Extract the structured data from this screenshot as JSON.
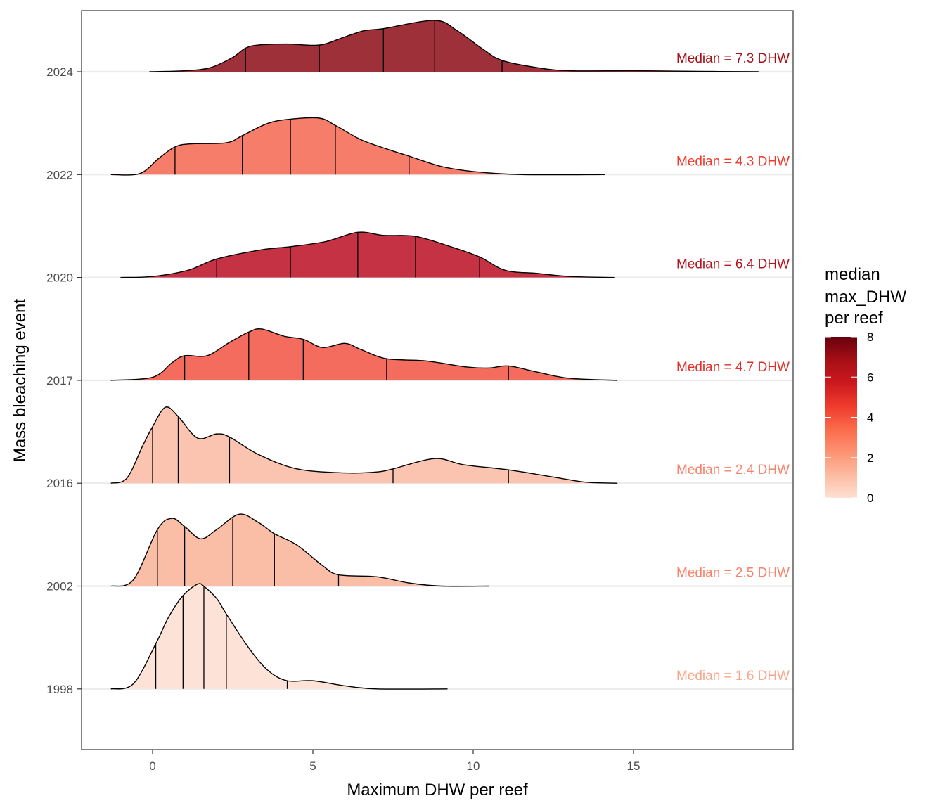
{
  "chart_data": {
    "type": "ridgeline",
    "title": "",
    "xlabel": "Maximum DHW per reef",
    "ylabel": "Mass bleaching event",
    "xlim": [
      -2.2,
      20
    ],
    "x_ticks": [
      0,
      5,
      10,
      15
    ],
    "x_tick_labels": [
      "0",
      "5",
      "10",
      "15"
    ],
    "grid": "horizontal baselines only",
    "legend": {
      "title_lines": [
        "median",
        "max_DHW",
        "per reef"
      ],
      "type": "colorbar",
      "placement": "right",
      "range": [
        0,
        8
      ],
      "ticks": [
        0,
        2,
        4,
        6,
        8
      ],
      "tick_labels": [
        "0",
        "2",
        "4",
        "6",
        "8"
      ],
      "colors": [
        "#fee0d2",
        "#fcbba1",
        "#fc9272",
        "#fb6a4a",
        "#ef3b2c",
        "#cb181d",
        "#a50f15",
        "#67000d"
      ]
    },
    "series": [
      {
        "name": "2024",
        "median": 7.3,
        "median_label": "Median = 7.3 DHW",
        "fill": "#9e3039",
        "label_color": "#a50f15",
        "quantile_lines": [
          2.9,
          5.2,
          7.2,
          8.8,
          10.9
        ],
        "density": [
          [
            -0.1,
            0
          ],
          [
            1,
            0.01
          ],
          [
            1.8,
            0.04
          ],
          [
            2.5,
            0.14
          ],
          [
            2.9,
            0.23
          ],
          [
            3.3,
            0.26
          ],
          [
            4.2,
            0.27
          ],
          [
            5.2,
            0.26
          ],
          [
            6,
            0.34
          ],
          [
            6.6,
            0.4
          ],
          [
            7.2,
            0.42
          ],
          [
            8.8,
            0.5
          ],
          [
            9.5,
            0.4
          ],
          [
            10.3,
            0.22
          ],
          [
            10.9,
            0.11
          ],
          [
            12,
            0.04
          ],
          [
            13,
            0.01
          ],
          [
            15,
            0.01
          ],
          [
            17,
            0.004
          ],
          [
            18.9,
            0
          ]
        ]
      },
      {
        "name": "2022",
        "median": 4.3,
        "median_label": "Median = 4.3 DHW",
        "fill": "#f67d69",
        "label_color": "#ef3b2c",
        "quantile_lines": [
          0.7,
          2.8,
          4.3,
          5.7,
          8.0
        ],
        "density": [
          [
            -1.3,
            0
          ],
          [
            -0.4,
            0.01
          ],
          [
            0.2,
            0.16
          ],
          [
            0.7,
            0.27
          ],
          [
            1.2,
            0.3
          ],
          [
            2.3,
            0.31
          ],
          [
            2.8,
            0.38
          ],
          [
            3.6,
            0.5
          ],
          [
            4.3,
            0.54
          ],
          [
            5.2,
            0.55
          ],
          [
            5.7,
            0.48
          ],
          [
            6.5,
            0.34
          ],
          [
            7.3,
            0.25
          ],
          [
            8,
            0.18
          ],
          [
            9,
            0.08
          ],
          [
            10,
            0.03
          ],
          [
            11.5,
            0.0
          ],
          [
            14.1,
            0
          ]
        ]
      },
      {
        "name": "2020",
        "median": 6.4,
        "median_label": "Median = 6.4 DHW",
        "fill": "#c53244",
        "label_color": "#b5141e",
        "quantile_lines": [
          2.0,
          4.3,
          6.4,
          8.2,
          10.2
        ],
        "density": [
          [
            -1.0,
            0
          ],
          [
            0,
            0.01
          ],
          [
            1.1,
            0.07
          ],
          [
            2.0,
            0.18
          ],
          [
            3.4,
            0.27
          ],
          [
            4.3,
            0.3
          ],
          [
            5.4,
            0.35
          ],
          [
            6.4,
            0.44
          ],
          [
            7.2,
            0.41
          ],
          [
            8.2,
            0.4
          ],
          [
            9.3,
            0.3
          ],
          [
            10.2,
            0.2
          ],
          [
            11,
            0.07
          ],
          [
            12,
            0.04
          ],
          [
            13,
            0.01
          ],
          [
            14.4,
            0
          ]
        ]
      },
      {
        "name": "2017",
        "median": 4.7,
        "median_label": "Median = 4.7 DHW",
        "fill": "#f36c5e",
        "label_color": "#e32f27",
        "quantile_lines": [
          1.0,
          3.0,
          4.7,
          7.3,
          11.1
        ],
        "density": [
          [
            -1.3,
            0
          ],
          [
            0,
            0.03
          ],
          [
            0.6,
            0.17
          ],
          [
            1.0,
            0.24
          ],
          [
            1.7,
            0.24
          ],
          [
            2.4,
            0.37
          ],
          [
            3.0,
            0.47
          ],
          [
            3.4,
            0.5
          ],
          [
            4.1,
            0.43
          ],
          [
            4.7,
            0.4
          ],
          [
            5.3,
            0.32
          ],
          [
            6.0,
            0.36
          ],
          [
            6.5,
            0.3
          ],
          [
            7.3,
            0.21
          ],
          [
            8.5,
            0.19
          ],
          [
            9.8,
            0.13
          ],
          [
            10.5,
            0.12
          ],
          [
            11.1,
            0.14
          ],
          [
            12,
            0.08
          ],
          [
            13,
            0.02
          ],
          [
            14.5,
            0
          ]
        ]
      },
      {
        "name": "2016",
        "median": 2.4,
        "median_label": "Median = 2.4 DHW",
        "fill": "#fbc4b0",
        "label_color": "#f8826a",
        "quantile_lines": [
          0.0,
          0.8,
          2.4,
          7.5,
          11.1
        ],
        "density": [
          [
            -1.3,
            0
          ],
          [
            -0.8,
            0.05
          ],
          [
            -0.3,
            0.37
          ],
          [
            0.0,
            0.55
          ],
          [
            0.4,
            0.74
          ],
          [
            0.8,
            0.65
          ],
          [
            1.4,
            0.44
          ],
          [
            2.0,
            0.48
          ],
          [
            2.4,
            0.45
          ],
          [
            3.3,
            0.28
          ],
          [
            4.5,
            0.14
          ],
          [
            6,
            0.1
          ],
          [
            7.0,
            0.11
          ],
          [
            7.5,
            0.14
          ],
          [
            8.8,
            0.24
          ],
          [
            9.7,
            0.18
          ],
          [
            11.1,
            0.13
          ],
          [
            12.5,
            0.06
          ],
          [
            13.5,
            0.01
          ],
          [
            14.5,
            0
          ]
        ]
      },
      {
        "name": "2002",
        "median": 2.5,
        "median_label": "Median = 2.5 DHW",
        "fill": "#fabda6",
        "label_color": "#f7836b",
        "quantile_lines": [
          0.15,
          1.0,
          2.5,
          3.8,
          5.8
        ],
        "density": [
          [
            -1.3,
            0
          ],
          [
            -0.6,
            0.06
          ],
          [
            0.15,
            0.55
          ],
          [
            0.6,
            0.66
          ],
          [
            1.0,
            0.58
          ],
          [
            1.5,
            0.46
          ],
          [
            2.0,
            0.55
          ],
          [
            2.7,
            0.7
          ],
          [
            3.3,
            0.62
          ],
          [
            3.8,
            0.51
          ],
          [
            4.5,
            0.4
          ],
          [
            5.3,
            0.2
          ],
          [
            5.8,
            0.11
          ],
          [
            7,
            0.09
          ],
          [
            8,
            0.03
          ],
          [
            9,
            0.0
          ],
          [
            10.5,
            0
          ]
        ]
      },
      {
        "name": "1998",
        "median": 1.6,
        "median_label": "Median = 1.6 DHW",
        "fill": "#fde3d7",
        "label_color": "#fba68c",
        "quantile_lines": [
          0.1,
          0.95,
          1.6,
          2.3,
          4.2
        ],
        "density": [
          [
            -1.3,
            0
          ],
          [
            -0.6,
            0.05
          ],
          [
            0.1,
            0.44
          ],
          [
            0.5,
            0.7
          ],
          [
            0.95,
            0.91
          ],
          [
            1.4,
            1.02
          ],
          [
            1.6,
            1.0
          ],
          [
            2.0,
            0.88
          ],
          [
            2.3,
            0.73
          ],
          [
            3.0,
            0.4
          ],
          [
            3.6,
            0.18
          ],
          [
            4.2,
            0.08
          ],
          [
            5.0,
            0.08
          ],
          [
            6,
            0.03
          ],
          [
            7,
            0.0
          ],
          [
            9.2,
            0
          ]
        ]
      }
    ]
  }
}
